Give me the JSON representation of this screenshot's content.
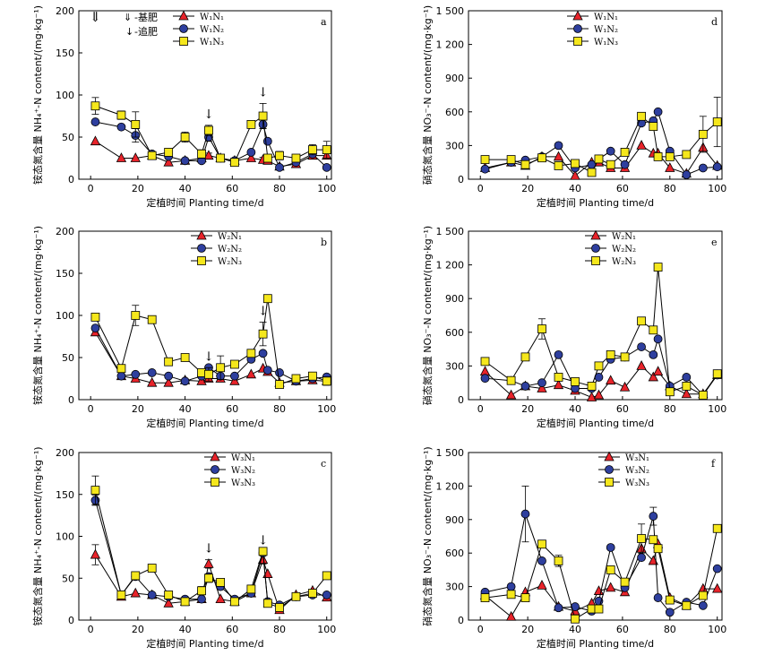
{
  "chart_data": [
    {
      "panel": "a",
      "type": "line",
      "xlabel": "定植时间 Planting time/d",
      "ylabel": "铵态氮含量 NH₄⁺-N content/(mg·kg⁻¹)",
      "xlim": [
        -5,
        102
      ],
      "ylim": [
        0,
        200
      ],
      "xticks": [
        0,
        20,
        40,
        60,
        80,
        100
      ],
      "yticks": [
        0,
        50,
        100,
        150,
        200
      ],
      "yticklabels": [
        "0",
        "50",
        "100",
        "150",
        "200"
      ],
      "x": [
        2,
        13,
        19,
        26,
        33,
        40,
        47,
        50,
        55,
        61,
        68,
        73,
        75,
        80,
        87,
        94,
        100
      ],
      "series": [
        {
          "name": "W₁N₁",
          "marker": "triangle",
          "color": "#e8232a",
          "values": [
            45,
            25,
            25,
            28,
            20,
            22,
            25,
            28,
            25,
            22,
            25,
            23,
            22,
            15,
            18,
            28,
            28
          ],
          "errors": [
            0,
            0,
            0,
            3,
            0,
            0,
            0,
            3,
            0,
            0,
            0,
            3,
            0,
            0,
            0,
            0,
            0
          ]
        },
        {
          "name": "W₁N₂",
          "marker": "circle",
          "color": "#2e3f9e",
          "values": [
            68,
            62,
            52,
            30,
            27,
            22,
            22,
            50,
            25,
            22,
            32,
            65,
            45,
            14,
            20,
            30,
            14
          ],
          "errors": [
            0,
            0,
            8,
            0,
            0,
            0,
            0,
            5,
            0,
            0,
            0,
            5,
            3,
            0,
            0,
            0,
            0
          ]
        },
        {
          "name": "W₁N₃",
          "marker": "square",
          "color": "#f5e71c",
          "values": [
            87,
            76,
            65,
            28,
            32,
            50,
            30,
            58,
            25,
            20,
            65,
            75,
            25,
            28,
            25,
            35,
            35
          ],
          "errors": [
            10,
            5,
            15,
            4,
            4,
            6,
            5,
            6,
            4,
            3,
            3,
            15,
            4,
            5,
            4,
            6,
            10
          ]
        }
      ],
      "annotations": [
        {
          "symbol": "⇓",
          "x": 2
        },
        {
          "symbol": "↓",
          "x": 50
        },
        {
          "symbol": "↓",
          "x": 73
        }
      ]
    },
    {
      "panel": "b",
      "type": "line",
      "xlabel": "定植时间 Planting time/d",
      "ylabel": "铵态氮含量 NH₄⁺-N content/(mg·kg⁻¹)",
      "xlim": [
        -5,
        102
      ],
      "ylim": [
        0,
        200
      ],
      "xticks": [
        0,
        20,
        40,
        60,
        80,
        100
      ],
      "yticks": [
        0,
        50,
        100,
        150,
        200
      ],
      "yticklabels": [
        "0",
        "50",
        "100",
        "150",
        "200"
      ],
      "x": [
        2,
        13,
        19,
        26,
        33,
        40,
        47,
        50,
        55,
        61,
        68,
        73,
        75,
        80,
        87,
        94,
        100
      ],
      "series": [
        {
          "name": "W₂N₁",
          "marker": "triangle",
          "color": "#e8232a",
          "values": [
            80,
            28,
            25,
            20,
            20,
            23,
            22,
            25,
            25,
            22,
            30,
            37,
            33,
            20,
            22,
            23,
            22
          ],
          "errors": [
            0,
            0,
            0,
            0,
            0,
            0,
            0,
            0,
            0,
            0,
            0,
            0,
            0,
            0,
            0,
            0,
            0
          ]
        },
        {
          "name": "W₂N₂",
          "marker": "circle",
          "color": "#2e3f9e",
          "values": [
            85,
            28,
            30,
            32,
            28,
            22,
            28,
            38,
            28,
            28,
            48,
            55,
            35,
            32,
            22,
            25,
            27
          ],
          "errors": [
            0,
            0,
            0,
            0,
            0,
            0,
            0,
            0,
            0,
            0,
            0,
            0,
            0,
            0,
            0,
            0,
            0
          ]
        },
        {
          "name": "W₂N₃",
          "marker": "square",
          "color": "#f5e71c",
          "values": [
            98,
            37,
            100,
            95,
            45,
            50,
            32,
            30,
            38,
            42,
            55,
            78,
            120,
            18,
            25,
            28,
            22
          ],
          "errors": [
            0,
            0,
            12,
            0,
            0,
            0,
            0,
            8,
            14,
            0,
            0,
            14,
            0,
            0,
            0,
            0,
            5
          ]
        }
      ],
      "annotations": [
        {
          "symbol": "↓",
          "x": 50
        },
        {
          "symbol": "↓",
          "x": 73
        }
      ]
    },
    {
      "panel": "c",
      "type": "line",
      "xlabel": "定植时间 Planting time/d",
      "ylabel": "铵态氮含量 NH₄⁺-N content/(mg·kg⁻¹)",
      "xlim": [
        -5,
        102
      ],
      "ylim": [
        0,
        200
      ],
      "xticks": [
        0,
        20,
        40,
        60,
        80,
        100
      ],
      "yticks": [
        0,
        50,
        100,
        150,
        200
      ],
      "yticklabels": [
        "0",
        "50",
        "100",
        "150",
        "200"
      ],
      "x": [
        2,
        13,
        19,
        26,
        33,
        40,
        47,
        50,
        55,
        61,
        68,
        73,
        75,
        80,
        87,
        94,
        100
      ],
      "series": [
        {
          "name": "W₃N₁",
          "marker": "triangle",
          "color": "#e8232a",
          "values": [
            78,
            28,
            32,
            30,
            20,
            22,
            25,
            67,
            25,
            22,
            32,
            72,
            55,
            12,
            30,
            35,
            27
          ],
          "errors": [
            12,
            0,
            0,
            0,
            0,
            0,
            0,
            5,
            0,
            0,
            0,
            5,
            0,
            0,
            0,
            0,
            0
          ]
        },
        {
          "name": "W₃N₂",
          "marker": "circle",
          "color": "#2e3f9e",
          "values": [
            143,
            30,
            52,
            30,
            28,
            25,
            25,
            52,
            40,
            25,
            32,
            80,
            22,
            18,
            28,
            30,
            30
          ],
          "errors": [
            6,
            0,
            0,
            0,
            0,
            0,
            0,
            0,
            0,
            0,
            0,
            0,
            0,
            0,
            0,
            0,
            0
          ]
        },
        {
          "name": "W₃N₃",
          "marker": "square",
          "color": "#f5e71c",
          "values": [
            155,
            30,
            53,
            62,
            30,
            22,
            35,
            50,
            45,
            22,
            37,
            82,
            20,
            15,
            28,
            32,
            53
          ],
          "errors": [
            17,
            0,
            0,
            4,
            0,
            0,
            5,
            5,
            0,
            0,
            0,
            0,
            0,
            0,
            0,
            0,
            0
          ]
        }
      ],
      "annotations": [
        {
          "symbol": "↓",
          "x": 50
        },
        {
          "symbol": "↓",
          "x": 73
        }
      ]
    },
    {
      "panel": "d",
      "type": "line",
      "xlabel": "定植时间 Planting time/d",
      "ylabel": "硝态氮含量 NO₃⁻-N content/(mg·kg⁻¹)",
      "xlim": [
        -5,
        102
      ],
      "ylim": [
        0,
        1500
      ],
      "xticks": [
        0,
        20,
        40,
        60,
        80,
        100
      ],
      "yticks": [
        0,
        300,
        600,
        900,
        1200,
        1500
      ],
      "yticklabels": [
        "0",
        "300",
        "600",
        "900",
        "1 200",
        "1 500"
      ],
      "x": [
        2,
        13,
        19,
        26,
        33,
        40,
        47,
        50,
        55,
        61,
        68,
        73,
        75,
        80,
        87,
        94,
        100
      ],
      "series": [
        {
          "name": "W₁N₁",
          "marker": "triangle",
          "color": "#e8232a",
          "values": [
            100,
            150,
            120,
            200,
            200,
            30,
            150,
            150,
            100,
            100,
            300,
            230,
            230,
            100,
            50,
            280,
            120
          ],
          "errors": [
            0,
            0,
            0,
            0,
            0,
            0,
            0,
            0,
            0,
            0,
            0,
            0,
            0,
            0,
            0,
            0,
            0
          ]
        },
        {
          "name": "W₁N₂",
          "marker": "circle",
          "color": "#2e3f9e",
          "values": [
            90,
            150,
            170,
            200,
            300,
            100,
            130,
            180,
            250,
            130,
            500,
            520,
            600,
            250,
            40,
            100,
            110
          ],
          "errors": [
            0,
            0,
            0,
            0,
            0,
            0,
            0,
            0,
            0,
            0,
            0,
            0,
            0,
            0,
            0,
            0,
            0
          ]
        },
        {
          "name": "W₁N₃",
          "marker": "square",
          "color": "#f5e71c",
          "values": [
            175,
            175,
            130,
            190,
            120,
            140,
            60,
            180,
            130,
            240,
            560,
            470,
            200,
            200,
            220,
            400,
            510
          ],
          "errors": [
            0,
            0,
            0,
            0,
            0,
            0,
            0,
            0,
            0,
            0,
            0,
            0,
            0,
            0,
            0,
            160,
            220
          ]
        }
      ],
      "annotations": []
    },
    {
      "panel": "e",
      "type": "line",
      "xlabel": "定植时间 Planting time/d",
      "ylabel": "硝态氮含量 NO₃⁻-N content/(mg·kg⁻¹)",
      "xlim": [
        -5,
        102
      ],
      "ylim": [
        0,
        1500
      ],
      "xticks": [
        0,
        20,
        40,
        60,
        80,
        100
      ],
      "yticks": [
        0,
        300,
        600,
        900,
        1200,
        1500
      ],
      "yticklabels": [
        "0",
        "300",
        "600",
        "900",
        "1 200",
        "1 500"
      ],
      "x": [
        2,
        13,
        19,
        26,
        33,
        40,
        47,
        50,
        55,
        61,
        68,
        73,
        75,
        80,
        87,
        94,
        100
      ],
      "series": [
        {
          "name": "W₂N₁",
          "marker": "triangle",
          "color": "#e8232a",
          "values": [
            250,
            40,
            120,
            100,
            130,
            80,
            20,
            40,
            170,
            110,
            300,
            200,
            250,
            120,
            50,
            50,
            220
          ],
          "errors": [
            0,
            0,
            0,
            0,
            0,
            0,
            0,
            0,
            0,
            0,
            0,
            0,
            0,
            0,
            0,
            0,
            0
          ]
        },
        {
          "name": "W₂N₂",
          "marker": "circle",
          "color": "#2e3f9e",
          "values": [
            190,
            170,
            120,
            150,
            400,
            100,
            100,
            200,
            360,
            380,
            470,
            400,
            540,
            120,
            200,
            40,
            220
          ],
          "errors": [
            0,
            0,
            0,
            0,
            0,
            0,
            0,
            0,
            0,
            0,
            0,
            0,
            0,
            0,
            0,
            0,
            0
          ]
        },
        {
          "name": "W₂N₃",
          "marker": "square",
          "color": "#f5e71c",
          "values": [
            340,
            170,
            380,
            630,
            200,
            160,
            120,
            300,
            400,
            380,
            700,
            620,
            1180,
            70,
            120,
            40,
            230
          ],
          "errors": [
            0,
            0,
            0,
            90,
            0,
            0,
            0,
            0,
            0,
            0,
            0,
            0,
            0,
            0,
            0,
            0,
            0
          ]
        }
      ],
      "annotations": []
    },
    {
      "panel": "f",
      "type": "line",
      "xlabel": "定植时间 Planting time/d",
      "ylabel": "硝态氮含量 NO₃⁻-N content/(mg·kg⁻¹)",
      "xlim": [
        -5,
        102
      ],
      "ylim": [
        0,
        1500
      ],
      "xticks": [
        0,
        20,
        40,
        60,
        80,
        100
      ],
      "yticks": [
        0,
        300,
        600,
        900,
        1200,
        1500
      ],
      "yticklabels": [
        "0",
        "300",
        "600",
        "900",
        "1 200",
        "1 500"
      ],
      "x": [
        2,
        13,
        19,
        26,
        33,
        40,
        47,
        50,
        55,
        61,
        68,
        73,
        75,
        80,
        87,
        94,
        100
      ],
      "series": [
        {
          "name": "W₃N₁",
          "marker": "triangle",
          "color": "#e8232a",
          "values": [
            220,
            30,
            250,
            310,
            120,
            80,
            150,
            260,
            290,
            250,
            640,
            530,
            680,
            200,
            130,
            280,
            280
          ],
          "errors": [
            0,
            0,
            0,
            0,
            0,
            0,
            0,
            0,
            0,
            0,
            0,
            0,
            0,
            0,
            0,
            0,
            0
          ]
        },
        {
          "name": "W₃N₂",
          "marker": "circle",
          "color": "#2e3f9e",
          "values": [
            250,
            300,
            950,
            530,
            110,
            120,
            80,
            170,
            650,
            290,
            560,
            930,
            200,
            70,
            160,
            130,
            460
          ],
          "errors": [
            0,
            0,
            250,
            0,
            0,
            0,
            0,
            0,
            0,
            0,
            0,
            80,
            0,
            0,
            0,
            0,
            0
          ]
        },
        {
          "name": "W₃N₃",
          "marker": "square",
          "color": "#f5e71c",
          "values": [
            200,
            230,
            200,
            680,
            530,
            10,
            100,
            100,
            450,
            340,
            730,
            720,
            640,
            180,
            130,
            220,
            820
          ],
          "errors": [
            0,
            0,
            0,
            0,
            50,
            0,
            0,
            0,
            0,
            0,
            130,
            0,
            0,
            0,
            0,
            0,
            0
          ]
        }
      ],
      "annotations": []
    }
  ],
  "notes": {
    "basal_symbol": "⇓",
    "basal_text": "-基肥",
    "topdress_symbol": "↓",
    "topdress_text": "-追肥"
  }
}
